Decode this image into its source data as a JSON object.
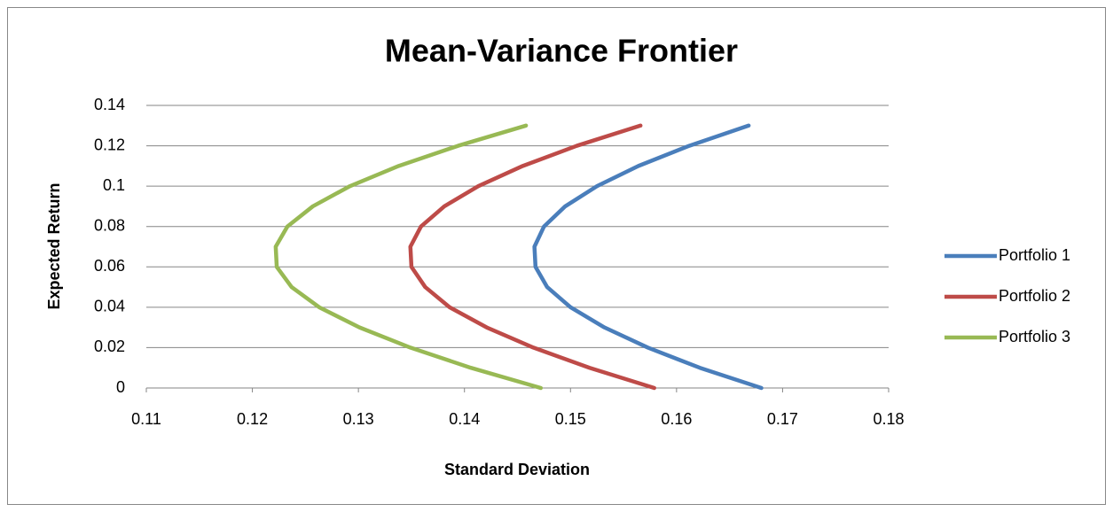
{
  "chart_data": {
    "type": "line",
    "title": "Mean-Variance Frontier",
    "xlabel": "Standard Deviation",
    "ylabel": "Expected Return",
    "xlim": [
      0.11,
      0.18
    ],
    "xticks": [
      0.11,
      0.12,
      0.13,
      0.14,
      0.15,
      0.16,
      0.17,
      0.18
    ],
    "ylim": [
      0,
      0.14
    ],
    "yticks": [
      0,
      0.02,
      0.04,
      0.06,
      0.08,
      0.1,
      0.12,
      0.14
    ],
    "grid": true,
    "legend": "right",
    "series": [
      {
        "name": "Portfolio 1",
        "color": "#4a7ebb",
        "x": [
          0.168,
          0.1622,
          0.1573,
          0.1532,
          0.15,
          0.1478,
          0.1467,
          0.1466,
          0.1475,
          0.1495,
          0.1525,
          0.1564,
          0.1612,
          0.1668
        ],
        "values": [
          0,
          0.01,
          0.02,
          0.03,
          0.04,
          0.05,
          0.06,
          0.07,
          0.08,
          0.09,
          0.1,
          0.11,
          0.12,
          0.13
        ]
      },
      {
        "name": "Portfolio 2",
        "color": "#be4b48",
        "x": [
          0.1579,
          0.1518,
          0.1465,
          0.1421,
          0.1386,
          0.1363,
          0.135,
          0.1349,
          0.1359,
          0.1381,
          0.1413,
          0.1455,
          0.1506,
          0.1566
        ],
        "values": [
          0,
          0.01,
          0.02,
          0.03,
          0.04,
          0.05,
          0.06,
          0.07,
          0.08,
          0.09,
          0.1,
          0.11,
          0.12,
          0.13
        ]
      },
      {
        "name": "Portfolio 3",
        "color": "#98b954",
        "x": [
          0.1472,
          0.1406,
          0.1349,
          0.1301,
          0.1263,
          0.1237,
          0.1223,
          0.1222,
          0.1233,
          0.1257,
          0.1292,
          0.1338,
          0.1394,
          0.1458
        ],
        "values": [
          0,
          0.01,
          0.02,
          0.03,
          0.04,
          0.05,
          0.06,
          0.07,
          0.08,
          0.09,
          0.1,
          0.11,
          0.12,
          0.13
        ]
      }
    ]
  }
}
